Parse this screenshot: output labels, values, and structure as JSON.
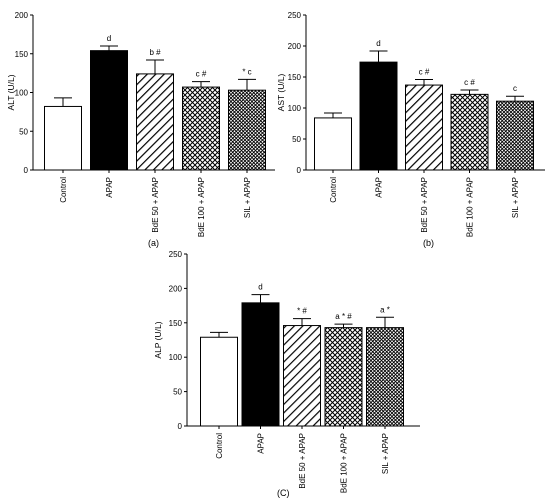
{
  "chart_data": [
    {
      "type": "bar",
      "panel_label": "(a)",
      "ylabel": "ALT (U/L)",
      "ylim": [
        0,
        200
      ],
      "yticks": [
        "0",
        "50",
        "100",
        "150",
        "200"
      ],
      "grid": false,
      "categories": [
        "Control",
        "APAP",
        "BdE 50 + APAP",
        "BdE 100 + APAP",
        "SIL + APAP"
      ],
      "values": [
        82,
        154,
        124,
        107,
        103
      ],
      "errors": [
        11,
        6,
        18,
        7,
        14
      ],
      "annotations": [
        "",
        "d",
        "b #",
        "c #",
        "* c"
      ],
      "fills": [
        "white",
        "black",
        "diagonal",
        "crosshatch",
        "dense-crosshatch"
      ]
    },
    {
      "type": "bar",
      "panel_label": "(b)",
      "ylabel": "AST (U/L)",
      "ylim": [
        0,
        250
      ],
      "yticks": [
        "0",
        "50",
        "100",
        "150",
        "200",
        "250"
      ],
      "grid": false,
      "categories": [
        "Control",
        "APAP",
        "BdE 50 + APAP",
        "BdE 100 + APAP",
        "SIL + APAP"
      ],
      "values": [
        84,
        174,
        137,
        122,
        111
      ],
      "errors": [
        8,
        18,
        9,
        7,
        8
      ],
      "annotations": [
        "",
        "d",
        "c #",
        "c #",
        "c"
      ],
      "fills": [
        "white",
        "black",
        "diagonal",
        "crosshatch",
        "dense-crosshatch"
      ]
    },
    {
      "type": "bar",
      "panel_label": "(C)",
      "ylabel": "ALP (U/L)",
      "ylim": [
        0,
        250
      ],
      "yticks": [
        "0",
        "50",
        "100",
        "150",
        "200",
        "250"
      ],
      "grid": false,
      "categories": [
        "Control",
        "APAP",
        "BdE 50 + APAP",
        "BdE 100 + APAP",
        "SIL + APAP"
      ],
      "values": [
        129,
        179,
        146,
        143,
        143
      ],
      "errors": [
        7,
        12,
        10,
        5,
        15
      ],
      "annotations": [
        "",
        "d",
        "* #",
        "a * #",
        "a *"
      ],
      "fills": [
        "white",
        "black",
        "diagonal",
        "crosshatch",
        "dense-crosshatch"
      ]
    }
  ]
}
